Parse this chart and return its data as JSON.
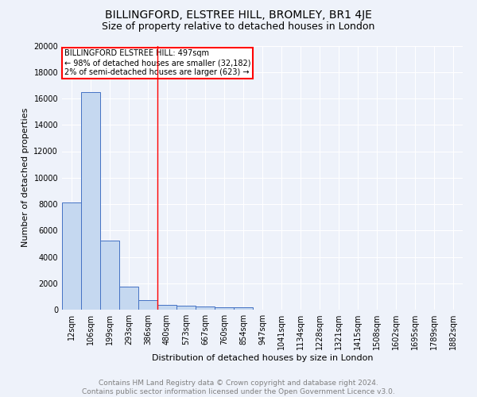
{
  "title": "BILLINGFORD, ELSTREE HILL, BROMLEY, BR1 4JE",
  "subtitle": "Size of property relative to detached houses in London",
  "xlabel": "Distribution of detached houses by size in London",
  "ylabel": "Number of detached properties",
  "categories": [
    "12sqm",
    "106sqm",
    "199sqm",
    "293sqm",
    "386sqm",
    "480sqm",
    "573sqm",
    "667sqm",
    "760sqm",
    "854sqm",
    "947sqm",
    "1041sqm",
    "1134sqm",
    "1228sqm",
    "1321sqm",
    "1415sqm",
    "1508sqm",
    "1602sqm",
    "1695sqm",
    "1789sqm",
    "1882sqm"
  ],
  "values": [
    8100,
    16500,
    5250,
    1750,
    700,
    350,
    300,
    230,
    210,
    170,
    0,
    0,
    0,
    0,
    0,
    0,
    0,
    0,
    0,
    0,
    0
  ],
  "bar_color": "#c5d8f0",
  "bar_edge_color": "#4472c4",
  "vline_x": 4.5,
  "vline_color": "red",
  "annotation_title": "BILLINGFORD ELSTREE HILL: 497sqm",
  "annotation_line1": "← 98% of detached houses are smaller (32,182)",
  "annotation_line2": "2% of semi-detached houses are larger (623) →",
  "annotation_box_color": "white",
  "annotation_box_edge": "red",
  "ylim": [
    0,
    20000
  ],
  "yticks": [
    0,
    2000,
    4000,
    6000,
    8000,
    10000,
    12000,
    14000,
    16000,
    18000,
    20000
  ],
  "background_color": "#eef2fa",
  "grid_color": "white",
  "footer_line1": "Contains HM Land Registry data © Crown copyright and database right 2024.",
  "footer_line2": "Contains public sector information licensed under the Open Government Licence v3.0.",
  "title_fontsize": 10,
  "subtitle_fontsize": 9,
  "label_fontsize": 8,
  "tick_fontsize": 7,
  "footer_fontsize": 6.5
}
